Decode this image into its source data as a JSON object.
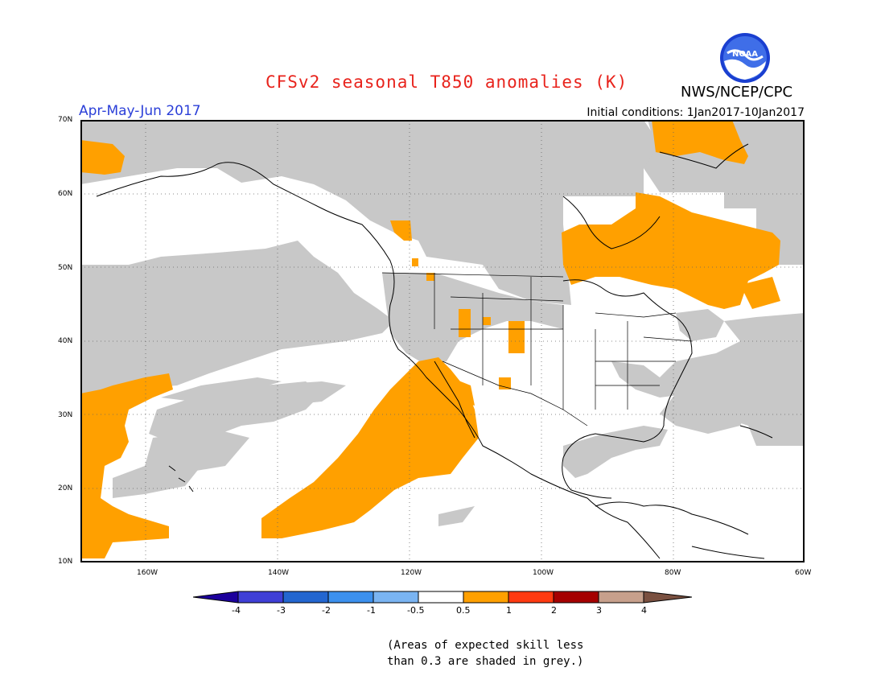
{
  "header": {
    "title": "CFSv2 seasonal T850 anomalies (K)",
    "agency": "NWS/NCEP/CPC",
    "period": "Apr-May-Jun 2017",
    "initial_conditions": "Initial conditions: 1Jan2017-10Jan2017",
    "logo_text": "NOAA"
  },
  "map": {
    "region": "North America and eastern Pacific",
    "lat_labels": [
      "70N",
      "60N",
      "50N",
      "40N",
      "30N",
      "20N",
      "10N"
    ],
    "lon_labels": [
      "160W",
      "140W",
      "120W",
      "100W",
      "80W",
      "60W"
    ],
    "colors": {
      "positive_anomaly": "#ffa000",
      "low_skill": "#c8c8c8",
      "background": "#ffffff",
      "coastline": "#000000"
    }
  },
  "colorbar": {
    "ticks": [
      "-4",
      "-3",
      "-2",
      "-1",
      "-0.5",
      "0.5",
      "1",
      "2",
      "3",
      "4"
    ],
    "colors": [
      "#1c009c",
      "#3f3fd6",
      "#2366d0",
      "#3c90ee",
      "#7ab4f2",
      "#ffffff",
      "#ffa000",
      "#ff3a10",
      "#a50000",
      "#c7a08c",
      "#7a5040"
    ]
  },
  "footnote": {
    "line1": "(Areas of expected skill less",
    "line2": "than 0.3 are shaded in grey.)"
  }
}
